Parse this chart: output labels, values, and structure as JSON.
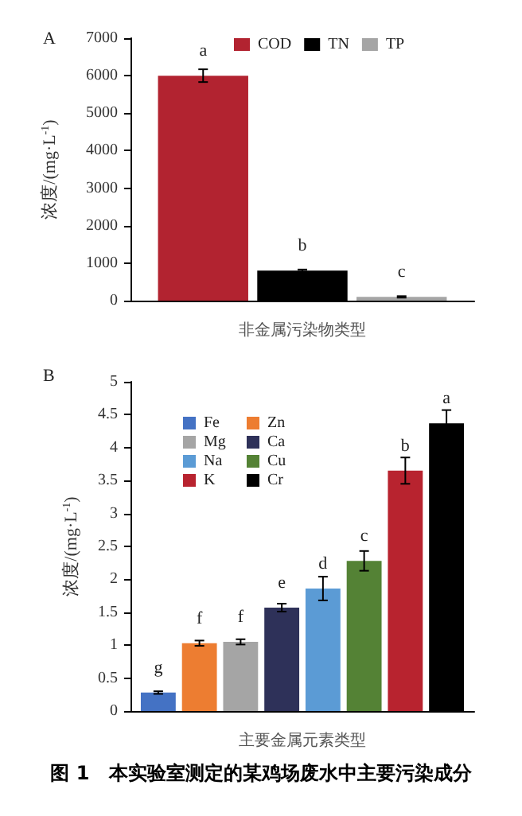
{
  "chart_data": [
    {
      "type": "bar",
      "title": "A",
      "xlabel": "非金属污染物类型",
      "ylabel": "浓度/(mg·L$^{-1}$)",
      "categories": [
        null
      ],
      "series": [
        {
          "name": "COD",
          "color": "#b22330",
          "values": [
            6000
          ],
          "errors": [
            170
          ],
          "value_labels": [
            "a"
          ]
        },
        {
          "name": "TN",
          "color": "#000000",
          "values": [
            800
          ],
          "errors": [
            30
          ],
          "value_labels": [
            "b"
          ]
        },
        {
          "name": "TP",
          "color": "#a5a5a5",
          "values": [
            100
          ],
          "errors": [
            20
          ],
          "value_labels": [
            "c"
          ]
        }
      ],
      "ylim": [
        0,
        7000
      ],
      "yticks": [
        0,
        1000,
        2000,
        3000,
        4000,
        5000,
        6000,
        7000
      ],
      "grid": false,
      "legend": "top"
    },
    {
      "type": "bar",
      "title": "B",
      "xlabel": "主要金属元素类型",
      "ylabel": "浓度/(mg·L$^{-1}$)",
      "categories": [
        null
      ],
      "series": [
        {
          "name": "Fe",
          "color": "#4472c4",
          "values": [
            0.28
          ],
          "errors": [
            0.02
          ],
          "value_labels": [
            "g"
          ]
        },
        {
          "name": "Zn",
          "color": "#ed7d31",
          "values": [
            1.03
          ],
          "errors": [
            0.04
          ],
          "value_labels": [
            "f"
          ]
        },
        {
          "name": "Mg",
          "color": "#a5a5a5",
          "values": [
            1.05
          ],
          "errors": [
            0.04
          ],
          "value_labels": [
            "f"
          ]
        },
        {
          "name": "Ca",
          "color": "#2e3159",
          "values": [
            1.57
          ],
          "errors": [
            0.06
          ],
          "value_labels": [
            "e"
          ]
        },
        {
          "name": "Na",
          "color": "#5b9bd5",
          "values": [
            1.86
          ],
          "errors": [
            0.18
          ],
          "value_labels": [
            "d"
          ]
        },
        {
          "name": "Cu",
          "color": "#548235",
          "values": [
            2.28
          ],
          "errors": [
            0.15
          ],
          "value_labels": [
            "c"
          ]
        },
        {
          "name": "K",
          "color": "#b8232f",
          "values": [
            3.65
          ],
          "errors": [
            0.2
          ],
          "value_labels": [
            "b"
          ]
        },
        {
          "name": "Cr",
          "color": "#000000",
          "values": [
            4.37
          ],
          "errors": [
            0.2
          ],
          "value_labels": [
            "a"
          ]
        }
      ],
      "ylim": [
        0,
        5
      ],
      "yticks": [
        0,
        0.5,
        1,
        1.5,
        2,
        2.5,
        3,
        3.5,
        4,
        4.5,
        5
      ],
      "grid": false,
      "legend": "top left",
      "annotations": [
        "图 1　本实验室测定的某鸡场废水中主要污染成分"
      ]
    }
  ]
}
